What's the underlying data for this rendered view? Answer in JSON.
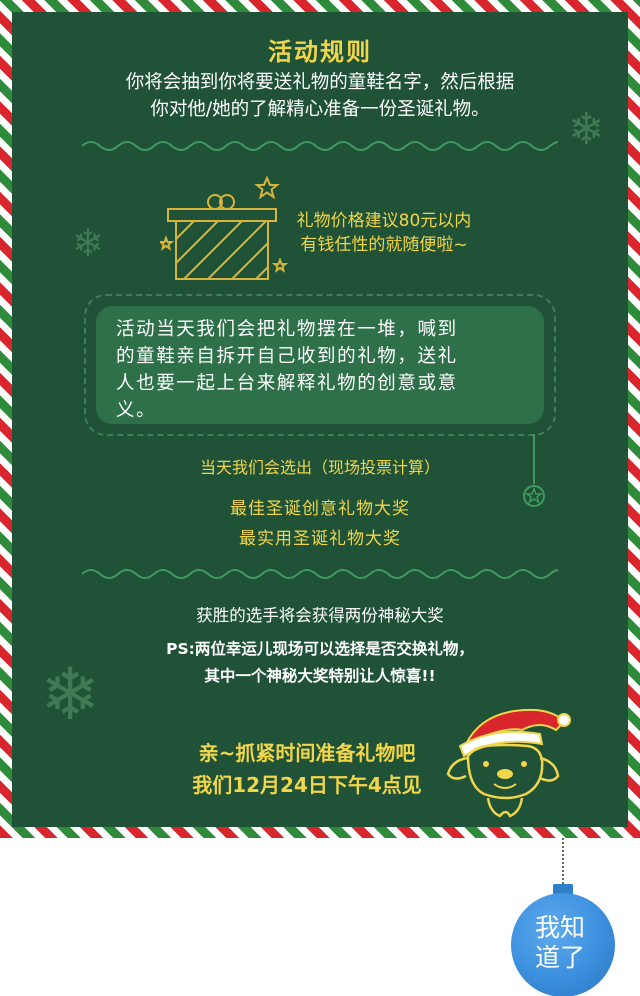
{
  "rules": {
    "title": "活动规则",
    "intro_line1": "你将会抽到你将要送礼物的童鞋名字，然后根据",
    "intro_line2": "你对他/她的了解精心准备一份圣诞礼物。"
  },
  "gift": {
    "price_line1": "礼物价格建议80元以内",
    "price_line2": "有钱任性的就随便啦~"
  },
  "event_box": {
    "line1": "活动当天我们会把礼物摆在一堆，喊到",
    "line2": "的童鞋亲自拆开自己收到的礼物，送礼",
    "line3": "人也要一起上台来解释礼物的创意或意",
    "line4": "义。"
  },
  "voting": {
    "intro": "当天我们会选出（现场投票计算）",
    "award1": "最佳圣诞创意礼物大奖",
    "award2": "最实用圣诞礼物大奖"
  },
  "prize": {
    "winner": "获胜的选手将会获得两份神秘大奖",
    "ps_line1": "PS:两位幸运儿现场可以选择是否交换礼物，",
    "ps_line2": "其中一个神秘大奖特别让人惊喜!!"
  },
  "cta": {
    "line1": "亲~抓紧时间准备礼物吧",
    "line2": "我们12月24日下午4点见"
  },
  "confirm_button": {
    "line1": "我知",
    "line2": "道了"
  },
  "colors": {
    "board": "#1f5236",
    "accent": "#f1d54a",
    "button": "#3b8fdc",
    "stripe_red": "#d8262c",
    "stripe_green": "#2e8b3a"
  }
}
